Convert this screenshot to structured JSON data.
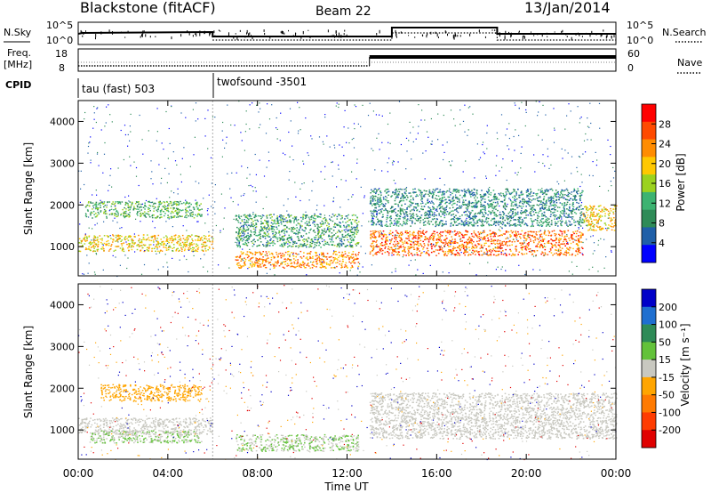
{
  "header": {
    "station": "Blackstone (fitACF)",
    "beam": "Beam 22",
    "date": "13/Jan/2014"
  },
  "strips": {
    "nsky_label": "N.Sky",
    "nsearch_label": "N.Search",
    "freq_label": "Freq.",
    "freq_unit": "[MHz]",
    "nave_label": "Nave",
    "cpid_label": "CPID",
    "noise_ticks_left": [
      "10^5",
      "10^0"
    ],
    "noise_ticks_right": [
      "10^5",
      "10^0"
    ],
    "freq_ticks": [
      "18",
      "8"
    ],
    "nave_ticks": [
      "60",
      "0"
    ],
    "cpid_segments": [
      {
        "name": "tau (fast) 503",
        "start_hour": 0
      },
      {
        "name": "twofsound -3501",
        "start_hour": 6
      }
    ]
  },
  "panels": {
    "power": {
      "ylabel": "Slant Range [km]",
      "colorbar_label": "Power [dB]",
      "colorbar_ticks": [
        "28",
        "24",
        "20",
        "16",
        "12",
        "8",
        "4"
      ],
      "colorbar_colors": [
        "#ff0000",
        "#ff4a00",
        "#ff8c00",
        "#ffc800",
        "#9bd21e",
        "#3cb371",
        "#2e8b57",
        "#1f5fa8",
        "#0000ff"
      ]
    },
    "velocity": {
      "ylabel": "Slant Range [km]",
      "colorbar_label": "Velocity [m s⁻¹]",
      "colorbar_ticks": [
        "200",
        "100",
        "50",
        "15",
        "-15",
        "-50",
        "-100",
        "-200"
      ],
      "colorbar_colors": [
        "#0000c8",
        "#1f6fd0",
        "#2e8b57",
        "#63c23a",
        "#c8c8c0",
        "#ffa500",
        "#ff7a00",
        "#ff3c00",
        "#e00000"
      ]
    }
  },
  "xaxis": {
    "label": "Time UT",
    "ticks": [
      "00:00",
      "04:00",
      "08:00",
      "12:00",
      "16:00",
      "20:00",
      "00:00"
    ]
  },
  "chart_data": {
    "type": "heatmap",
    "x_range_hours": [
      0,
      24
    ],
    "y_range_km": [
      300,
      4500
    ],
    "yticks": [
      1000,
      2000,
      3000,
      4000
    ],
    "power_bands": [
      {
        "t0": 0.0,
        "t1": 6.0,
        "range0": 900,
        "range1": 1300,
        "power_db": 20
      },
      {
        "t0": 0.3,
        "t1": 5.5,
        "range0": 1700,
        "range1": 2100,
        "power_db": 12
      },
      {
        "t0": 7.0,
        "t1": 12.5,
        "range0": 500,
        "range1": 900,
        "power_db": 24
      },
      {
        "t0": 7.0,
        "t1": 12.5,
        "range0": 1000,
        "range1": 1800,
        "power_db": 10
      },
      {
        "t0": 13.0,
        "t1": 22.5,
        "range0": 800,
        "range1": 1400,
        "power_db": 26
      },
      {
        "t0": 22.5,
        "t1": 24.0,
        "range0": 1400,
        "range1": 2000,
        "power_db": 20
      },
      {
        "t0": 13.0,
        "t1": 22.5,
        "range0": 1500,
        "range1": 2400,
        "power_db": 8
      }
    ],
    "velocity_bands": [
      {
        "t0": 0.0,
        "t1": 6.0,
        "range0": 900,
        "range1": 1300,
        "velocity_ms": 0
      },
      {
        "t0": 1.0,
        "t1": 5.5,
        "range0": 1700,
        "range1": 2100,
        "velocity_ms": -60
      },
      {
        "t0": 0.5,
        "t1": 5.5,
        "range0": 700,
        "range1": 1000,
        "velocity_ms": 30
      },
      {
        "t0": 7.0,
        "t1": 12.5,
        "range0": 500,
        "range1": 900,
        "velocity_ms": 30
      },
      {
        "t0": 13.0,
        "t1": 24.0,
        "range0": 800,
        "range1": 1900,
        "velocity_ms": 0
      }
    ]
  }
}
